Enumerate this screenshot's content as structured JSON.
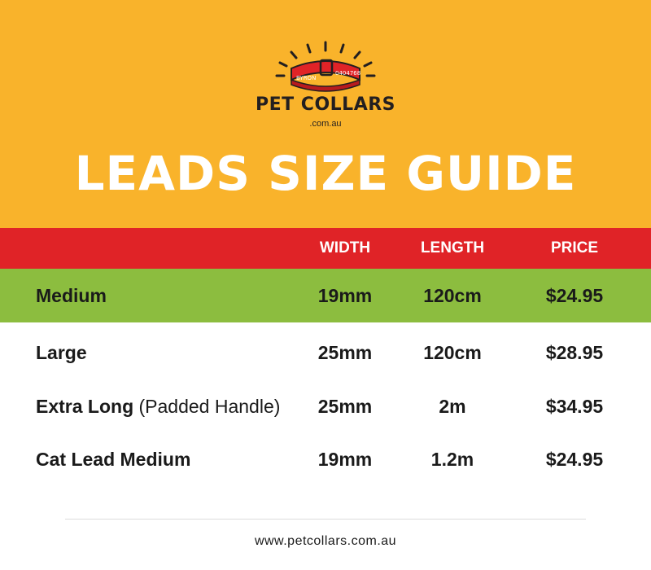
{
  "brand": {
    "name": "PET COLLARS",
    "domain": ".com.au",
    "collar_text_left": "BYRON",
    "collar_text_right": "0404768",
    "icon": "dog-collar-icon",
    "colors": {
      "collar": "#e02327",
      "ink": "#231f20"
    }
  },
  "title": "LEADS SIZE GUIDE",
  "table": {
    "headers": {
      "width": "WIDTH",
      "length": "LENGTH",
      "price": "PRICE"
    },
    "rows": [
      {
        "name": "Medium",
        "extra": "",
        "width": "19mm",
        "length": "120cm",
        "price": "$24.95",
        "highlight": true
      },
      {
        "name": "Large",
        "extra": "",
        "width": "25mm",
        "length": "120cm",
        "price": "$28.95",
        "highlight": false
      },
      {
        "name": "Extra Long",
        "extra": " (Padded Handle)",
        "width": "25mm",
        "length": "2m",
        "price": "$34.95",
        "highlight": false
      },
      {
        "name": "Cat Lead Medium",
        "extra": "",
        "width": "19mm",
        "length": "1.2m",
        "price": "$24.95",
        "highlight": false
      }
    ]
  },
  "footer": {
    "url": "www.petcollars.com.au"
  },
  "colors": {
    "hero": "#f9b32b",
    "header_band": "#e02327",
    "highlight_row": "#8cbd3f"
  }
}
